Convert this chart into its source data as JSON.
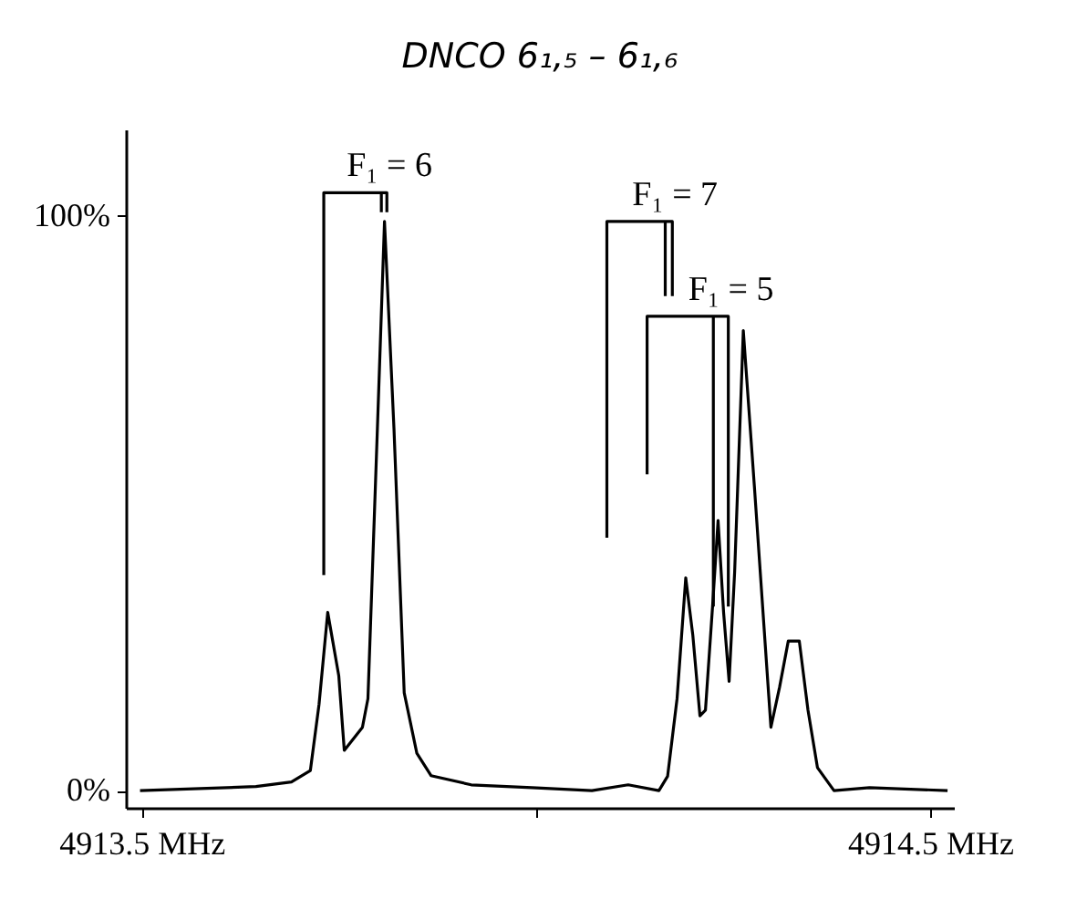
{
  "chart_data": {
    "type": "line",
    "title": "DNCO  6₁,₅ – 6₁,₆",
    "xlim": [
      4913.48,
      4914.53
    ],
    "ylim": [
      -3,
      115
    ],
    "xticks": [
      {
        "value": 4913.5,
        "label": "4913.5  MHz"
      },
      {
        "value": 4914,
        "label": null
      },
      {
        "value": 4914.5,
        "label": "4914.5  MHz"
      }
    ],
    "yticks": [
      {
        "value": 0,
        "label": "0%"
      },
      {
        "value": 100,
        "label": "100%"
      }
    ],
    "grid": false,
    "marker": "none",
    "line_style": "solid",
    "series": [
      {
        "color": "#000000",
        "x": [
          4913.498,
          4913.645,
          4913.69,
          4913.714,
          4913.725,
          4913.736,
          4913.75,
          4913.757,
          4913.78,
          4913.787,
          4913.799,
          4913.808,
          4913.82,
          4913.833,
          4913.849,
          4913.867,
          4913.918,
          4913.995,
          4914.071,
          4914.117,
          4914.156,
          4914.167,
          4914.179,
          4914.19,
          4914.199,
          4914.208,
          4914.215,
          4914.224,
          4914.231,
          4914.238,
          4914.245,
          4914.252,
          4914.263,
          4914.277,
          4914.298,
          4914.309,
          4914.32,
          4914.334,
          4914.345,
          4914.357,
          4914.378,
          4914.423,
          4914.522
        ],
        "values": [
          0,
          0.7,
          1.5,
          3.5,
          15,
          31,
          20,
          7,
          11,
          16,
          63,
          99,
          63,
          17,
          6.5,
          2.6,
          1,
          0.5,
          0,
          1,
          0,
          2.5,
          16,
          37,
          27,
          13,
          14,
          32,
          47,
          31,
          19,
          38,
          80,
          53,
          11,
          18,
          26,
          26,
          14,
          4,
          0,
          0.5,
          0
        ]
      },
      {
        "color": "#000000",
        "x": [
          4913.731,
          4913.731,
          4913.811,
          4913.811,
          null,
          4913.804,
          4913.804
        ],
        "values": [
          37.5,
          104,
          104,
          100.6,
          null,
          104,
          100.6
        ]
      },
      {
        "color": "#000000",
        "x": [
          4914.09,
          4914.09,
          4914.173,
          4914.173,
          null,
          4914.164,
          4914.164
        ],
        "values": [
          44,
          99,
          99,
          86,
          null,
          99,
          86
        ]
      },
      {
        "color": "#000000",
        "x": [
          4914.141,
          4914.141,
          4914.244,
          4914.244,
          null,
          4914.225,
          4914.225
        ],
        "values": [
          55,
          82.5,
          82.5,
          32,
          null,
          82.5,
          32
        ]
      }
    ],
    "annotations": [
      "F₁ = 6",
      "F₁ = 7",
      "F₁ = 5"
    ]
  }
}
